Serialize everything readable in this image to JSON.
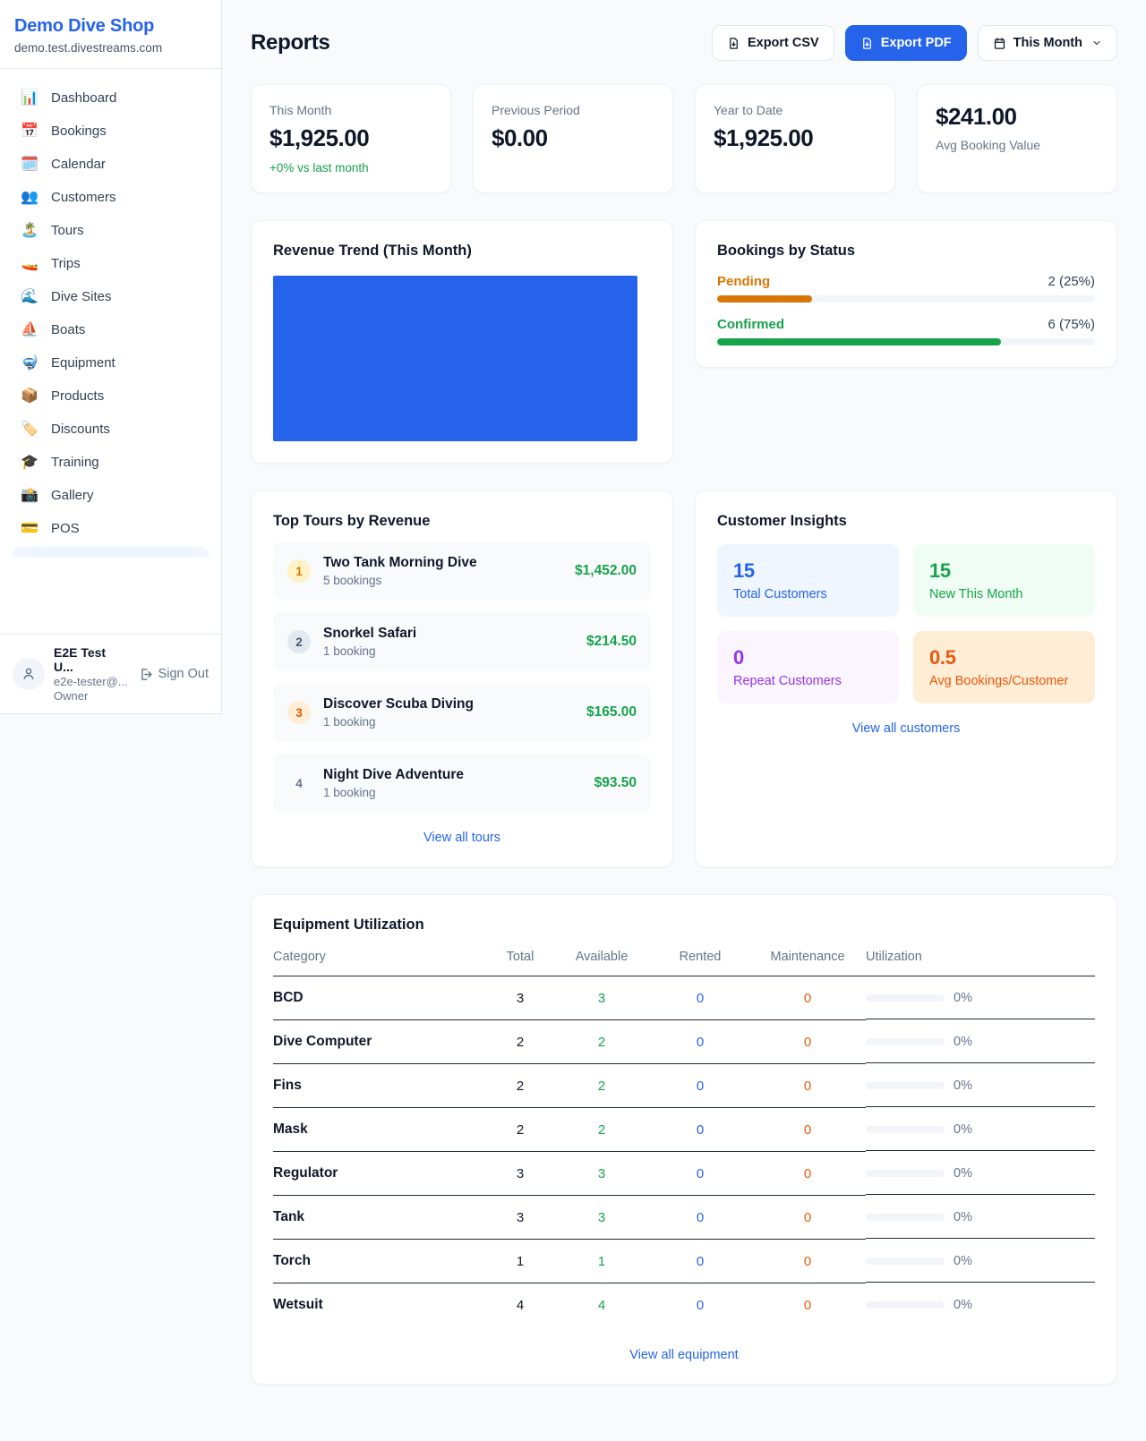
{
  "sidebar": {
    "brand": {
      "name": "Demo Dive Shop",
      "domain": "demo.test.divestreams.com"
    },
    "nav": [
      {
        "label": "Dashboard",
        "icon": "📊"
      },
      {
        "label": "Bookings",
        "icon": "📅"
      },
      {
        "label": "Calendar",
        "icon": "🗓️"
      },
      {
        "label": "Customers",
        "icon": "👥"
      },
      {
        "label": "Tours",
        "icon": "🏝️"
      },
      {
        "label": "Trips",
        "icon": "🚤"
      },
      {
        "label": "Dive Sites",
        "icon": "🌊"
      },
      {
        "label": "Boats",
        "icon": "⛵"
      },
      {
        "label": "Equipment",
        "icon": "🤿"
      },
      {
        "label": "Products",
        "icon": "📦"
      },
      {
        "label": "Discounts",
        "icon": "🏷️"
      },
      {
        "label": "Training",
        "icon": "🎓"
      },
      {
        "label": "Gallery",
        "icon": "📸"
      },
      {
        "label": "POS",
        "icon": "💳"
      }
    ],
    "user": {
      "name": "E2E Test U...",
      "email": "e2e-tester@...",
      "role": "Owner",
      "sign_out": "Sign Out"
    }
  },
  "header": {
    "title": "Reports",
    "export_csv": "Export CSV",
    "export_pdf": "Export PDF",
    "period": "This Month"
  },
  "stats": [
    {
      "label": "This Month",
      "value": "$1,925.00",
      "delta": "+0% vs last month"
    },
    {
      "label": "Previous Period",
      "value": "$0.00"
    },
    {
      "label": "Year to Date",
      "value": "$1,925.00"
    },
    {
      "label": "Avg Booking Value",
      "value": "$241.00"
    }
  ],
  "revenue_trend": {
    "title": "Revenue Trend (This Month)",
    "chart": {
      "type": "bar",
      "bar_fill_percent": 100,
      "color": "#2563eb"
    }
  },
  "bookings_by_status": {
    "title": "Bookings by Status",
    "rows": [
      {
        "label": "Pending",
        "count": "2 (25%)",
        "pct": 25,
        "color": "#d97706"
      },
      {
        "label": "Confirmed",
        "count": "6 (75%)",
        "pct": 75,
        "color": "#16a34a"
      }
    ]
  },
  "top_tours": {
    "title": "Top Tours by Revenue",
    "items": [
      {
        "rank": "1",
        "name": "Two Tank Morning Dive",
        "bookings": "5 bookings",
        "amount": "$1,452.00"
      },
      {
        "rank": "2",
        "name": "Snorkel Safari",
        "bookings": "1 booking",
        "amount": "$214.50"
      },
      {
        "rank": "3",
        "name": "Discover Scuba Diving",
        "bookings": "1 booking",
        "amount": "$165.00"
      },
      {
        "rank": "4",
        "name": "Night Dive Adventure",
        "bookings": "1 booking",
        "amount": "$93.50"
      }
    ],
    "view_all": "View all tours"
  },
  "customer_insights": {
    "title": "Customer Insights",
    "tiles": [
      {
        "value": "15",
        "label": "Total Customers"
      },
      {
        "value": "15",
        "label": "New This Month"
      },
      {
        "value": "0",
        "label": "Repeat Customers"
      },
      {
        "value": "0.5",
        "label": "Avg Bookings/Customer"
      }
    ],
    "view_all": "View all customers"
  },
  "equipment": {
    "title": "Equipment Utilization",
    "columns": [
      "Category",
      "Total",
      "Available",
      "Rented",
      "Maintenance",
      "Utilization"
    ],
    "rows": [
      {
        "category": "BCD",
        "total": "3",
        "available": "3",
        "rented": "0",
        "maintenance": "0",
        "utilization": "0%",
        "util_pct": 0
      },
      {
        "category": "Dive Computer",
        "total": "2",
        "available": "2",
        "rented": "0",
        "maintenance": "0",
        "utilization": "0%",
        "util_pct": 0
      },
      {
        "category": "Fins",
        "total": "2",
        "available": "2",
        "rented": "0",
        "maintenance": "0",
        "utilization": "0%",
        "util_pct": 0
      },
      {
        "category": "Mask",
        "total": "2",
        "available": "2",
        "rented": "0",
        "maintenance": "0",
        "utilization": "0%",
        "util_pct": 0
      },
      {
        "category": "Regulator",
        "total": "3",
        "available": "3",
        "rented": "0",
        "maintenance": "0",
        "utilization": "0%",
        "util_pct": 0
      },
      {
        "category": "Tank",
        "total": "3",
        "available": "3",
        "rented": "0",
        "maintenance": "0",
        "utilization": "0%",
        "util_pct": 0
      },
      {
        "category": "Torch",
        "total": "1",
        "available": "1",
        "rented": "0",
        "maintenance": "0",
        "utilization": "0%",
        "util_pct": 0
      },
      {
        "category": "Wetsuit",
        "total": "4",
        "available": "4",
        "rented": "0",
        "maintenance": "0",
        "utilization": "0%",
        "util_pct": 0
      }
    ],
    "view_all": "View all equipment"
  },
  "colors": {
    "accent": "#2563eb",
    "green": "#16a34a",
    "orange": "#d97706",
    "purple": "#9333ea"
  }
}
